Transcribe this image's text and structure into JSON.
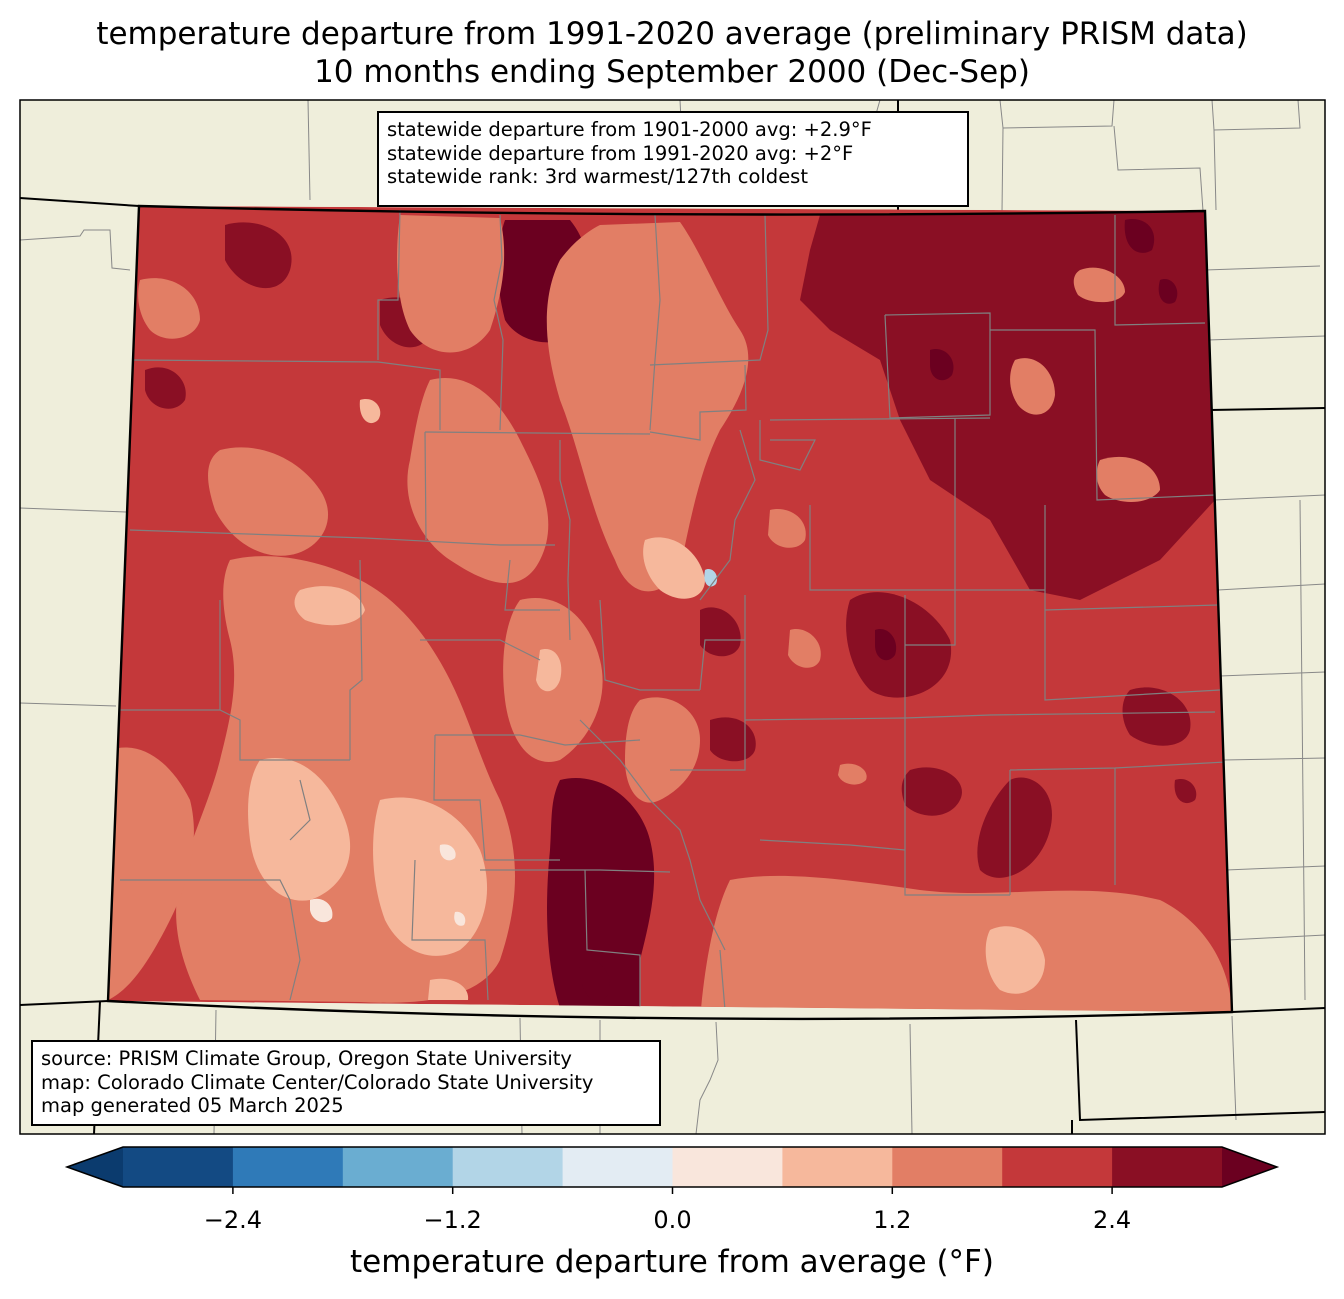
{
  "title_line1": "temperature departure from 1991-2020 average (preliminary PRISM data)",
  "title_line2": "10 months ending September 2000 (Dec-Sep)",
  "stats": {
    "line1": "statewide departure from 1901-2000 avg: +2.9°F",
    "line2": "statewide departure from 1991-2020 avg: +2°F",
    "line3": "statewide rank: 3rd warmest/127th coldest"
  },
  "source": {
    "line1": "source: PRISM Climate Group, Oregon State University",
    "line2": "map: Colorado Climate Center/Colorado State University",
    "line3": "map generated 05 March 2025"
  },
  "colorbar": {
    "label": "temperature departure from average (°F)",
    "ticks": [
      {
        "label": "−2.4",
        "value": -2.4
      },
      {
        "label": "−1.2",
        "value": -1.2
      },
      {
        "label": "0.0",
        "value": 0.0
      },
      {
        "label": "1.2",
        "value": 1.2
      },
      {
        "label": "2.4",
        "value": 2.4
      }
    ],
    "range": [
      -3.0,
      3.0
    ],
    "colors": [
      "#0b3b6e",
      "#134a83",
      "#2f7ab8",
      "#6aadd1",
      "#b2d5e7",
      "#e3ecf3",
      "#f9e6dc",
      "#f6b89c",
      "#e27e65",
      "#c4383a",
      "#8a0f24",
      "#6b0020"
    ]
  },
  "map_colors": {
    "land_outside": "#efeedb",
    "state_fill": "#c4383a",
    "darker": "#8a0f24",
    "darkest": "#6b0020",
    "medium": "#e27e65",
    "light": "#f6b89c",
    "lightest": "#f9e6dc",
    "cool": "#b2d5e7"
  }
}
